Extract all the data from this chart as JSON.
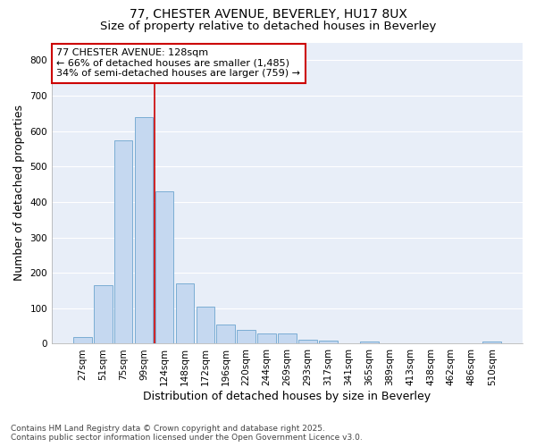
{
  "title1": "77, CHESTER AVENUE, BEVERLEY, HU17 8UX",
  "title2": "Size of property relative to detached houses in Beverley",
  "xlabel": "Distribution of detached houses by size in Beverley",
  "ylabel": "Number of detached properties",
  "footnote1": "Contains HM Land Registry data © Crown copyright and database right 2025.",
  "footnote2": "Contains public sector information licensed under the Open Government Licence v3.0.",
  "bar_labels": [
    "27sqm",
    "51sqm",
    "75sqm",
    "99sqm",
    "124sqm",
    "148sqm",
    "172sqm",
    "196sqm",
    "220sqm",
    "244sqm",
    "269sqm",
    "293sqm",
    "317sqm",
    "341sqm",
    "365sqm",
    "389sqm",
    "413sqm",
    "438sqm",
    "462sqm",
    "486sqm",
    "510sqm"
  ],
  "bar_values": [
    20,
    165,
    575,
    640,
    430,
    170,
    105,
    55,
    40,
    30,
    30,
    12,
    8,
    0,
    5,
    0,
    0,
    0,
    0,
    0,
    5
  ],
  "bar_color": "#c5d8f0",
  "bar_edge_color": "#7badd4",
  "vline_color": "#cc0000",
  "annotation_text": "77 CHESTER AVENUE: 128sqm\n← 66% of detached houses are smaller (1,485)\n34% of semi-detached houses are larger (759) →",
  "annotation_box_facecolor": "white",
  "annotation_box_edgecolor": "#cc0000",
  "ylim": [
    0,
    850
  ],
  "yticks": [
    0,
    100,
    200,
    300,
    400,
    500,
    600,
    700,
    800
  ],
  "fig_bg_color": "#ffffff",
  "plot_bg_color": "#e8eef8",
  "grid_color": "#ffffff",
  "title_fontsize": 10,
  "subtitle_fontsize": 9.5,
  "ylabel_fontsize": 9,
  "xlabel_fontsize": 9,
  "tick_fontsize": 7.5,
  "annot_fontsize": 8,
  "footnote_fontsize": 6.5
}
